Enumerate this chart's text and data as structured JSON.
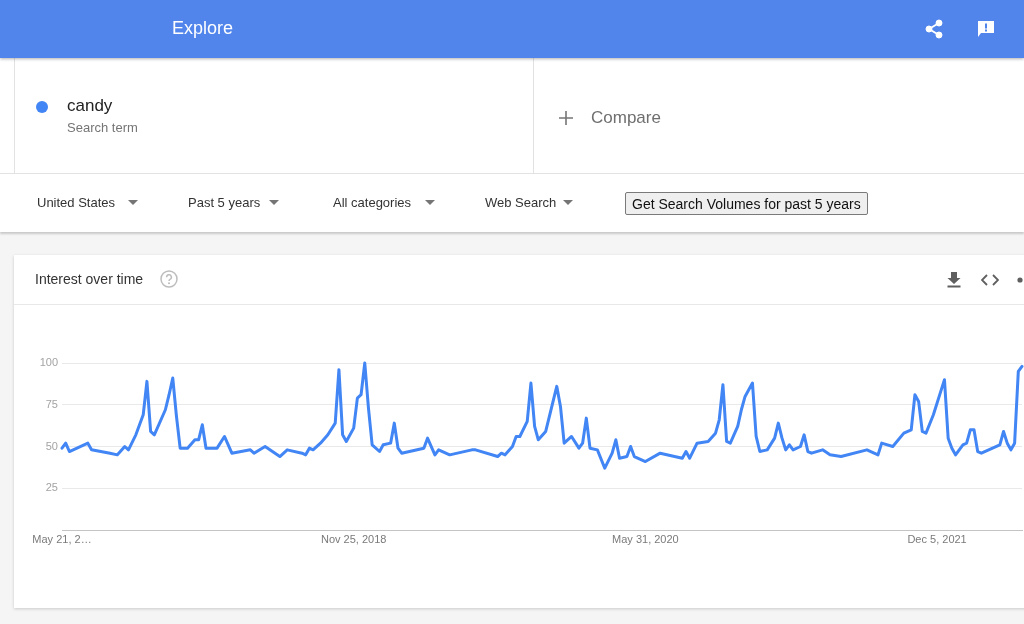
{
  "chart_data": {
    "type": "line",
    "title": "Interest over time",
    "annotations": [
      "Explore",
      "Search term",
      "Compare",
      "United States",
      "Past 5 years",
      "All categories",
      "Web Search",
      "Get Search Volumes for past 5 years"
    ],
    "x": [
      "2017-05-21",
      "2017-05-28",
      "2017-06-04",
      "2017-07-09",
      "2017-07-16",
      "2017-08-20",
      "2017-09-03",
      "2017-09-17",
      "2017-09-24",
      "2017-10-08",
      "2017-10-22",
      "2017-10-29",
      "2017-11-05",
      "2017-11-12",
      "2017-12-03",
      "2017-12-10",
      "2017-12-17",
      "2017-12-24",
      "2017-12-31",
      "2018-01-14",
      "2018-01-28",
      "2018-02-04",
      "2018-02-11",
      "2018-02-18",
      "2018-03-11",
      "2018-03-25",
      "2018-04-08",
      "2018-05-13",
      "2018-05-20",
      "2018-06-10",
      "2018-07-08",
      "2018-07-22",
      "2018-08-19",
      "2018-08-26",
      "2018-09-02",
      "2018-09-09",
      "2018-09-23",
      "2018-10-07",
      "2018-10-21",
      "2018-10-28",
      "2018-11-04",
      "2018-11-11",
      "2018-11-25",
      "2018-12-02",
      "2018-12-09",
      "2018-12-16",
      "2018-12-23",
      "2018-12-30",
      "2019-01-13",
      "2019-01-20",
      "2019-02-03",
      "2019-02-10",
      "2019-02-17",
      "2019-02-24",
      "2019-04-07",
      "2019-04-14",
      "2019-04-28",
      "2019-05-05",
      "2019-05-26",
      "2019-07-07",
      "2019-07-14",
      "2019-08-25",
      "2019-09-01",
      "2019-09-08",
      "2019-09-22",
      "2019-09-29",
      "2019-10-06",
      "2019-10-20",
      "2019-10-27",
      "2019-11-03",
      "2019-11-10",
      "2019-11-24",
      "2019-12-15",
      "2019-12-22",
      "2019-12-29",
      "2020-01-12",
      "2020-01-26",
      "2020-02-02",
      "2020-02-09",
      "2020-02-16",
      "2020-03-01",
      "2020-03-15",
      "2020-03-29",
      "2020-04-05",
      "2020-04-12",
      "2020-04-26",
      "2020-05-03",
      "2020-05-10",
      "2020-05-31",
      "2020-06-28",
      "2020-08-09",
      "2020-08-16",
      "2020-08-23",
      "2020-09-06",
      "2020-09-27",
      "2020-10-11",
      "2020-10-18",
      "2020-10-25",
      "2020-11-01",
      "2020-11-08",
      "2020-11-22",
      "2020-11-29",
      "2020-12-06",
      "2020-12-20",
      "2020-12-27",
      "2021-01-03",
      "2021-01-17",
      "2021-01-31",
      "2021-02-07",
      "2021-02-14",
      "2021-02-21",
      "2021-02-28",
      "2021-03-07",
      "2021-03-21",
      "2021-03-28",
      "2021-04-04",
      "2021-04-11",
      "2021-05-02",
      "2021-05-16",
      "2021-06-06",
      "2021-07-25",
      "2021-08-15",
      "2021-08-22",
      "2021-09-12",
      "2021-10-03",
      "2021-10-17",
      "2021-10-24",
      "2021-10-31",
      "2021-11-07",
      "2021-11-14",
      "2021-11-28",
      "2021-12-12",
      "2021-12-19",
      "2021-12-26",
      "2022-01-02",
      "2022-01-09",
      "2022-01-23",
      "2022-01-30",
      "2022-02-06",
      "2022-02-13",
      "2022-02-20",
      "2022-02-27",
      "2022-04-03",
      "2022-04-10",
      "2022-04-17",
      "2022-04-24",
      "2022-05-01",
      "2022-05-08",
      "2022-05-15"
    ],
    "series": [
      {
        "name": "candy",
        "color": "#4285f4",
        "values": [
          49,
          52,
          47,
          52,
          48,
          46,
          45,
          50,
          48,
          57,
          69,
          89,
          59,
          57,
          72,
          81,
          91,
          68,
          49,
          49,
          54,
          54,
          63,
          49,
          49,
          56,
          46,
          48,
          46,
          50,
          44,
          48,
          46,
          45,
          49,
          48,
          52,
          57,
          64,
          96,
          57,
          53,
          61,
          79,
          81,
          100,
          73,
          51,
          47,
          51,
          52,
          64,
          49,
          46,
          49,
          55,
          45,
          48,
          45,
          48,
          48,
          44,
          46,
          45,
          50,
          56,
          56,
          65,
          88,
          62,
          54,
          59,
          86,
          74,
          52,
          56,
          49,
          52,
          67,
          49,
          48,
          37,
          46,
          54,
          43,
          44,
          50,
          44,
          41,
          46,
          43,
          47,
          43,
          52,
          53,
          58,
          66,
          87,
          53,
          52,
          62,
          72,
          80,
          88,
          56,
          47,
          48,
          55,
          64,
          55,
          48,
          51,
          48,
          50,
          57,
          47,
          46,
          48,
          45,
          44,
          48,
          45,
          52,
          50,
          58,
          60,
          81,
          77,
          59,
          58,
          69,
          83,
          90,
          55,
          49,
          45,
          51,
          52,
          60,
          60,
          47,
          46,
          51,
          59,
          52,
          48,
          52,
          95,
          98
        ]
      }
    ],
    "xlim": [
      "2017-05-21",
      "2022-05-15"
    ],
    "xticks": [
      {
        "value": "2017-05-21",
        "label": "May 21, 2…"
      },
      {
        "value": "2018-11-25",
        "label": "Nov 25, 2018"
      },
      {
        "value": "2020-05-31",
        "label": "May 31, 2020"
      },
      {
        "value": "2021-12-05",
        "label": "Dec 5, 2021"
      }
    ],
    "ylim": [
      0,
      100
    ],
    "yticks": [
      25,
      50,
      75,
      100
    ],
    "grid": "y",
    "legend": "top left",
    "line_style": "solid"
  }
}
